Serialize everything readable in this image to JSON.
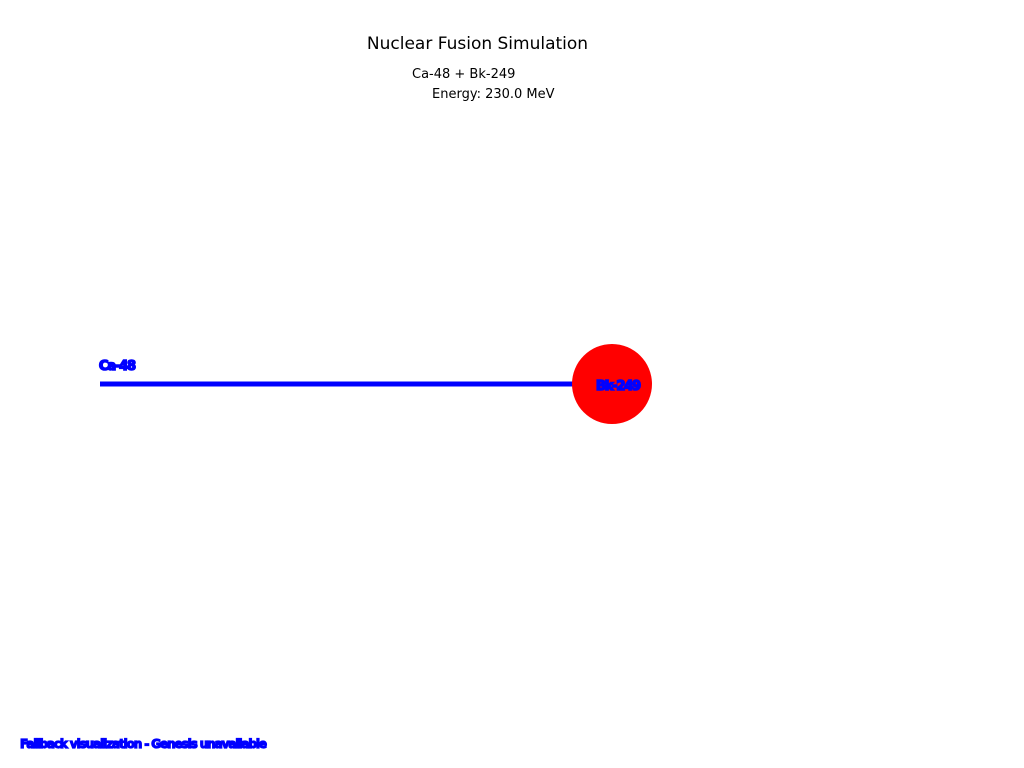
{
  "title": "Nuclear Fusion Simulation",
  "reaction": "Ca-48 + Bk-249",
  "energy": "Energy: 230.0 MeV",
  "projectile": {
    "label": "Ca-48",
    "color": "#0000ff"
  },
  "target": {
    "label": "Bk-249",
    "color": "#ff0000",
    "label_color": "#0000ff"
  },
  "footer": {
    "text": "Fallback visualization - Genesis unavailable",
    "color": "#0000ff"
  }
}
